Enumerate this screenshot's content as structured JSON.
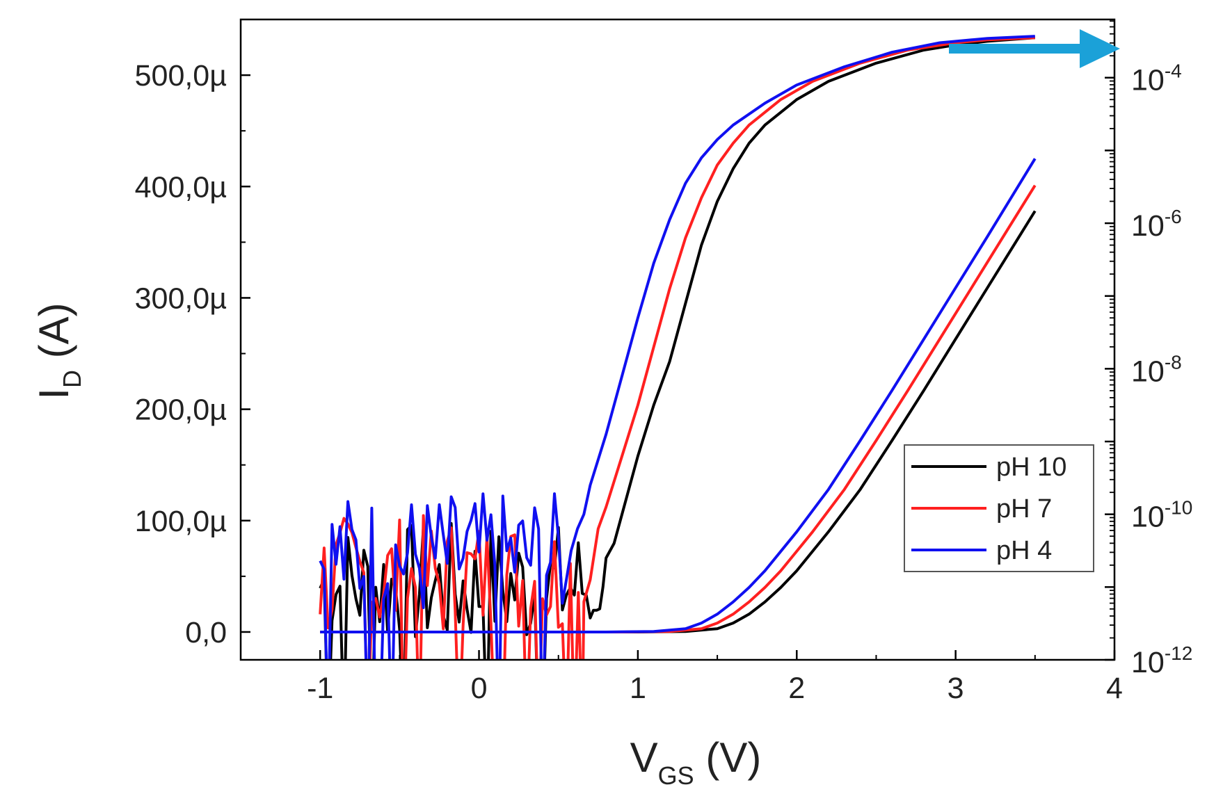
{
  "chart_data": {
    "type": "line",
    "xlabel": {
      "main": "V",
      "sub": "GS",
      "unit": " (V)"
    },
    "ylabel_left": {
      "main": "I",
      "sub": "D",
      "unit": " (A)"
    },
    "xlim": [
      -1.5,
      4
    ],
    "ylim_left": [
      -2.5e-05,
      0.00055
    ],
    "ylim_right_exp": [
      -12,
      -3.2
    ],
    "x_ticks": [
      -1,
      0,
      1,
      2,
      3,
      4
    ],
    "x_tick_labels": [
      "-1",
      "0",
      "1",
      "2",
      "3",
      "4"
    ],
    "y_ticks_left": [
      0,
      0.0001,
      0.0002,
      0.0003,
      0.0004,
      0.0005
    ],
    "y_tick_labels_left": [
      "0,0",
      "100,0µ",
      "200,0µ",
      "300,0µ",
      "400,0µ",
      "500,0µ"
    ],
    "y_ticks_right_exp": [
      -12,
      -10,
      -8,
      -6,
      -4
    ],
    "y_tick_labels_right": [
      {
        "base": "10",
        "exp": "-12"
      },
      {
        "base": "10",
        "exp": "-10"
      },
      {
        "base": "10",
        "exp": "-8"
      },
      {
        "base": "10",
        "exp": "-6"
      },
      {
        "base": "10",
        "exp": "-4"
      }
    ],
    "legend": {
      "position": "lower-right",
      "entries": [
        "pH 10",
        "pH 7",
        "pH 4"
      ]
    },
    "arrow_color": "#1ba1d8",
    "series": [
      {
        "name": "pH 10",
        "color": "#000000",
        "linear": {
          "x": [
            -1.0,
            1.0,
            1.3,
            1.5,
            1.6,
            1.7,
            1.8,
            1.9,
            2.0,
            2.2,
            2.4,
            2.6,
            2.8,
            3.0,
            3.2,
            3.4,
            3.5
          ],
          "y": [
            0,
            0,
            5e-07,
            3e-06,
            8e-06,
            1.6e-05,
            2.7e-05,
            4e-05,
            5.5e-05,
            9e-05,
            0.000128,
            0.000172,
            0.000217,
            0.000263,
            0.000309,
            0.000355,
            0.000378
          ]
        },
        "log": {
          "x": [
            0.72,
            0.74,
            0.76,
            0.78,
            0.8,
            0.85,
            0.9,
            1.0,
            1.1,
            1.2,
            1.3,
            1.4,
            1.5,
            1.6,
            1.7,
            1.8,
            2.0,
            2.2,
            2.5,
            2.8,
            3.0,
            3.2,
            3.5
          ],
          "y": [
            -11.32,
            -11.32,
            -11.3,
            -11.0,
            -10.6,
            -10.4,
            -10.0,
            -9.2,
            -8.5,
            -7.9,
            -7.1,
            -6.3,
            -5.7,
            -5.25,
            -4.9,
            -4.65,
            -4.3,
            -4.05,
            -3.8,
            -3.62,
            -3.55,
            -3.5,
            -3.45
          ]
        }
      },
      {
        "name": "pH 7",
        "color": "#ff2020",
        "linear": {
          "x": [
            -1.0,
            0.9,
            1.2,
            1.4,
            1.5,
            1.6,
            1.7,
            1.8,
            1.9,
            2.1,
            2.3,
            2.5,
            2.7,
            2.9,
            3.1,
            3.3,
            3.5
          ],
          "y": [
            0,
            0,
            5e-07,
            3e-06,
            8e-06,
            1.6e-05,
            2.7e-05,
            4e-05,
            5.5e-05,
            9e-05,
            0.000128,
            0.000172,
            0.000217,
            0.000263,
            0.000309,
            0.000355,
            0.000401
          ]
        },
        "log": {
          "x": [
            0.66,
            0.7,
            0.75,
            0.8,
            0.9,
            1.0,
            1.1,
            1.2,
            1.3,
            1.4,
            1.5,
            1.6,
            1.7,
            1.9,
            2.1,
            2.4,
            2.7,
            3.0,
            3.2,
            3.5
          ],
          "y": [
            -11.2,
            -10.9,
            -10.2,
            -9.9,
            -9.2,
            -8.5,
            -7.7,
            -6.9,
            -6.2,
            -5.65,
            -5.2,
            -4.9,
            -4.65,
            -4.3,
            -4.05,
            -3.8,
            -3.62,
            -3.52,
            -3.48,
            -3.45
          ]
        }
      },
      {
        "name": "pH 4",
        "color": "#1010f0",
        "linear": {
          "x": [
            -1.0,
            0.8,
            1.1,
            1.3,
            1.4,
            1.5,
            1.6,
            1.7,
            1.8,
            2.0,
            2.2,
            2.4,
            2.6,
            2.8,
            3.0,
            3.2,
            3.5
          ],
          "y": [
            0,
            0,
            5e-07,
            3e-06,
            8e-06,
            1.6e-05,
            2.7e-05,
            4e-05,
            5.5e-05,
            9e-05,
            0.000128,
            0.000172,
            0.000217,
            0.000263,
            0.000309,
            0.000355,
            0.000425
          ]
        },
        "log": {
          "x": [
            0.55,
            0.58,
            0.62,
            0.66,
            0.7,
            0.8,
            0.9,
            1.0,
            1.1,
            1.2,
            1.3,
            1.4,
            1.5,
            1.6,
            1.8,
            2.0,
            2.3,
            2.6,
            2.9,
            3.2,
            3.5
          ],
          "y": [
            -10.9,
            -10.5,
            -10.2,
            -10.0,
            -9.6,
            -8.9,
            -8.1,
            -7.3,
            -6.55,
            -5.95,
            -5.45,
            -5.1,
            -4.85,
            -4.65,
            -4.35,
            -4.1,
            -3.85,
            -3.65,
            -3.52,
            -3.46,
            -3.43
          ]
        }
      }
    ]
  }
}
